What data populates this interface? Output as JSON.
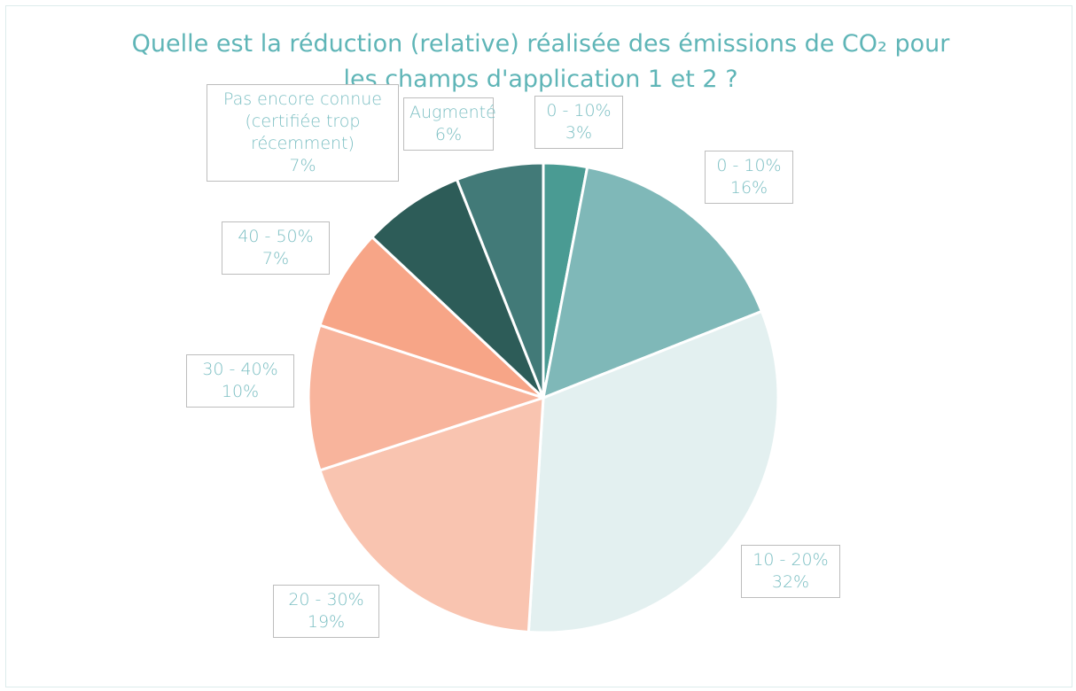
{
  "chart_data": {
    "type": "pie",
    "title": "Quelle est la réduction (relative) réalisée des émissions de CO₂ pour les champs d'application 1 et 2 ?",
    "categories": [
      "0 - 10%",
      "0 - 10%",
      "10 - 20%",
      "20 - 30%",
      "30 - 40%",
      "40 - 50%",
      "Pas encore connue (certifiée trop récemment)",
      "Augmenté"
    ],
    "values": [
      3,
      16,
      32,
      19,
      10,
      7,
      7,
      6
    ],
    "value_labels": [
      "3%",
      "16%",
      "32%",
      "19%",
      "10%",
      "7%",
      "7%",
      "6%"
    ],
    "colors": [
      "#4a9b93",
      "#7fb8b8",
      "#e3f0f0",
      "#f9c4b0",
      "#f8b49c",
      "#f7a587",
      "#2d5c58",
      "#427a78"
    ]
  }
}
